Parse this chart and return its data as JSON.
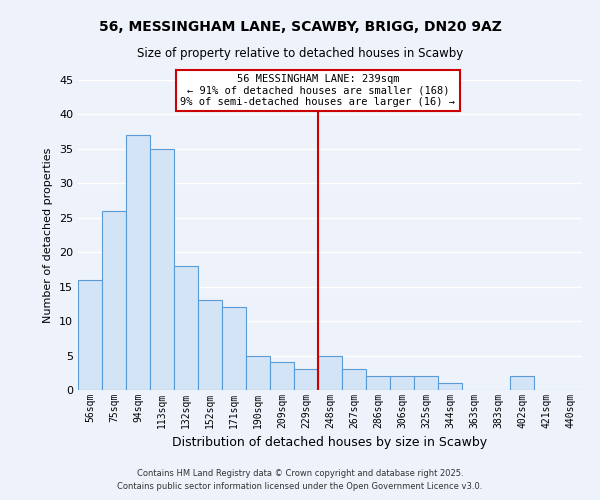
{
  "title": "56, MESSINGHAM LANE, SCAWBY, BRIGG, DN20 9AZ",
  "subtitle": "Size of property relative to detached houses in Scawby",
  "xlabel": "Distribution of detached houses by size in Scawby",
  "ylabel": "Number of detached properties",
  "bin_labels": [
    "56sqm",
    "75sqm",
    "94sqm",
    "113sqm",
    "132sqm",
    "152sqm",
    "171sqm",
    "190sqm",
    "209sqm",
    "229sqm",
    "248sqm",
    "267sqm",
    "286sqm",
    "306sqm",
    "325sqm",
    "344sqm",
    "363sqm",
    "383sqm",
    "402sqm",
    "421sqm",
    "440sqm"
  ],
  "bar_heights": [
    16,
    26,
    37,
    35,
    18,
    13,
    12,
    5,
    4,
    3,
    5,
    3,
    2,
    2,
    2,
    1,
    0,
    0,
    2,
    0,
    0
  ],
  "bar_color": "#d4e4f7",
  "bar_edge_color": "#5b9bd5",
  "vline_x": 9.5,
  "vline_color": "#cc0000",
  "annotation_title": "56 MESSINGHAM LANE: 239sqm",
  "annotation_line1": "← 91% of detached houses are smaller (168)",
  "annotation_line2": "9% of semi-detached houses are larger (16) →",
  "ylim": [
    0,
    45
  ],
  "yticks": [
    0,
    5,
    10,
    15,
    20,
    25,
    30,
    35,
    40,
    45
  ],
  "footer1": "Contains HM Land Registry data © Crown copyright and database right 2025.",
  "footer2": "Contains public sector information licensed under the Open Government Licence v3.0.",
  "bg_color": "#eef2fb",
  "grid_color": "#ffffff",
  "annotation_box_color": "#ffffff",
  "annotation_box_edge": "#cc0000",
  "title_fontsize": 10,
  "subtitle_fontsize": 8.5,
  "ylabel_fontsize": 8,
  "xlabel_fontsize": 9
}
